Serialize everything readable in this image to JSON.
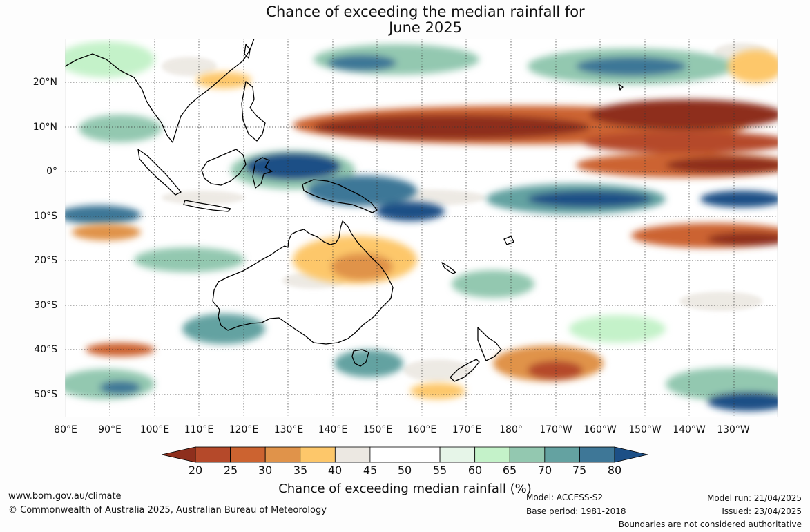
{
  "title_line1": "Chance of exceeding the median rainfall for",
  "title_line2": "June 2025",
  "lat_labels": [
    "20°N",
    "10°N",
    "0°",
    "10°S",
    "20°S",
    "30°S",
    "40°S",
    "50°S"
  ],
  "lon_labels": [
    "80°E",
    "90°E",
    "100°E",
    "110°E",
    "120°E",
    "130°E",
    "140°E",
    "150°E",
    "160°E",
    "170°E",
    "180°",
    "170°W",
    "160°W",
    "150°W",
    "140°W",
    "130°W"
  ],
  "colorbar": {
    "title": "Chance of exceeding median rainfall (%)",
    "ticks": [
      "20",
      "25",
      "30",
      "35",
      "40",
      "45",
      "50",
      "55",
      "60",
      "65",
      "70",
      "75",
      "80"
    ],
    "colors": [
      "#8e2f1d",
      "#b5492a",
      "#cc6330",
      "#e0934a",
      "#fdc76a",
      "#ece8e2",
      "#ffffff",
      "#ffffff",
      "#e6f5e8",
      "#c4f2c9",
      "#93c8b0",
      "#64a2a1",
      "#3e7797",
      "#1c4f86"
    ]
  },
  "footer": {
    "website": "www.bom.gov.au/climate",
    "copyright": "© Commonwealth of Australia 2025, Australian Bureau of Meteorology",
    "model": "Model: ACCESS-S2",
    "base_period": "Base period: 1981-2018",
    "model_run": "Model run: 21/04/2025",
    "issued": "Issued: 23/04/2025",
    "disclaimer": "Boundaries are not considered authoritative"
  }
}
